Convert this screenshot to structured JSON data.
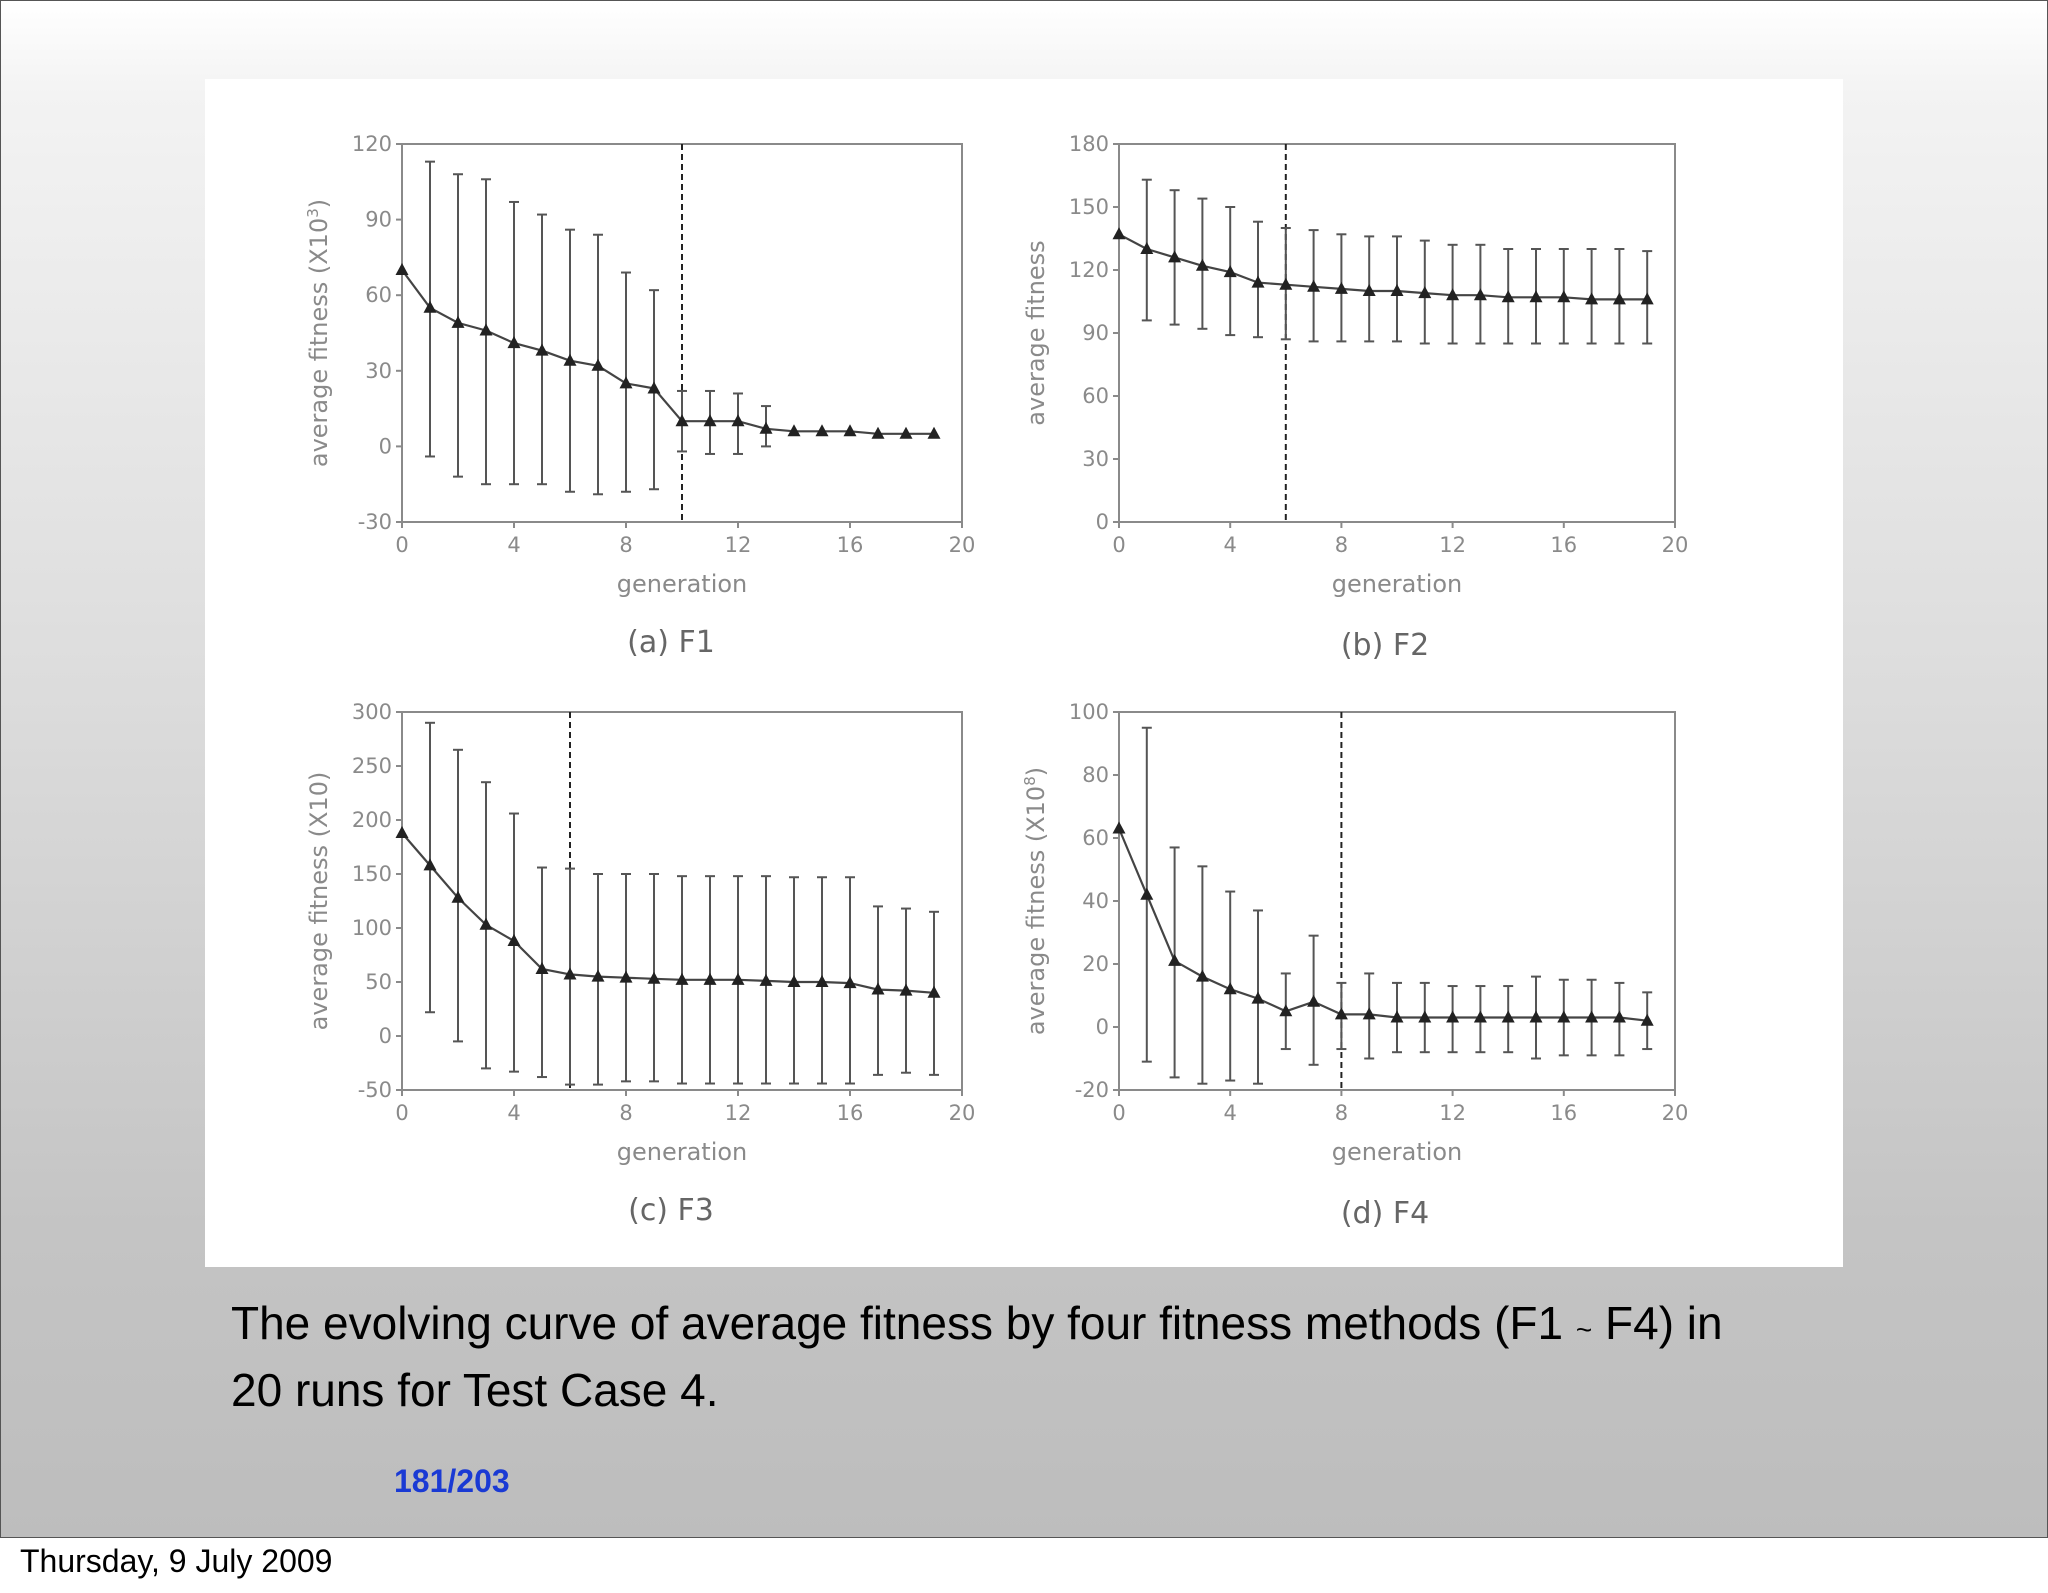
{
  "caption": {
    "text_part1": "The evolving curve of average fitness by four fitness methods (F1",
    "tilde": "~",
    "text_part2": " F4) in",
    "line2": "20 runs for Test Case 4."
  },
  "page_number": {
    "current": "181",
    "separator": "/",
    "total": "203"
  },
  "footer": {
    "date": "Thursday, 9 July 2009"
  },
  "colors": {
    "page_number": "#1a3ad4",
    "plot_ink": "#222222",
    "axis_gray": "#8a8a8a"
  },
  "chart_data": [
    {
      "type": "line",
      "panel_caption": "(a) F1",
      "xlabel": "generation",
      "ylabel": "average fitness (X10",
      "ylabel_sup": "3",
      "ylabel_end": ")",
      "xlim": [
        0,
        20
      ],
      "ylim": [
        -30,
        120
      ],
      "xticks": [
        "0",
        "4",
        "8",
        "12",
        "16",
        "20"
      ],
      "yticks": [
        "-30",
        "0",
        "30",
        "60",
        "90",
        "120"
      ],
      "ytick_values": [
        -30,
        0,
        30,
        60,
        90,
        120
      ],
      "xtick_values": [
        0,
        4,
        8,
        12,
        16,
        20
      ],
      "divider_x": 10,
      "x": [
        0,
        1,
        2,
        3,
        4,
        5,
        6,
        7,
        8,
        9,
        10,
        11,
        12,
        13,
        14,
        15,
        16,
        17,
        18,
        19
      ],
      "values": [
        70,
        55,
        49,
        46,
        41,
        38,
        34,
        32,
        25,
        23,
        10,
        10,
        10,
        7,
        6,
        6,
        6,
        5,
        5,
        5
      ],
      "err_low": [
        null,
        -4,
        -12,
        -15,
        -15,
        -15,
        -18,
        -19,
        -18,
        -17,
        -2,
        -3,
        -3,
        0,
        null,
        null,
        null,
        null,
        null,
        null
      ],
      "err_high": [
        null,
        113,
        108,
        106,
        97,
        92,
        86,
        84,
        69,
        62,
        22,
        22,
        21,
        16,
        null,
        null,
        null,
        null,
        null,
        null
      ]
    },
    {
      "type": "line",
      "panel_caption": "(b) F2",
      "xlabel": "generation",
      "ylabel": "average fitness",
      "ylabel_sup": "",
      "ylabel_end": "",
      "xlim": [
        0,
        20
      ],
      "ylim": [
        0,
        180
      ],
      "xticks": [
        "0",
        "4",
        "8",
        "12",
        "16",
        "20"
      ],
      "yticks": [
        "0",
        "30",
        "60",
        "90",
        "120",
        "150",
        "180"
      ],
      "ytick_values": [
        0,
        30,
        60,
        90,
        120,
        150,
        180
      ],
      "xtick_values": [
        0,
        4,
        8,
        12,
        16,
        20
      ],
      "divider_x": 6,
      "x": [
        0,
        1,
        2,
        3,
        4,
        5,
        6,
        7,
        8,
        9,
        10,
        11,
        12,
        13,
        14,
        15,
        16,
        17,
        18,
        19
      ],
      "values": [
        137,
        130,
        126,
        122,
        119,
        114,
        113,
        112,
        111,
        110,
        110,
        109,
        108,
        108,
        107,
        107,
        107,
        106,
        106,
        106
      ],
      "err_low": [
        null,
        96,
        94,
        92,
        89,
        88,
        87,
        86,
        86,
        86,
        86,
        85,
        85,
        85,
        85,
        85,
        85,
        85,
        85,
        85
      ],
      "err_high": [
        null,
        163,
        158,
        154,
        150,
        143,
        140,
        139,
        137,
        136,
        136,
        134,
        132,
        132,
        130,
        130,
        130,
        130,
        130,
        129
      ]
    },
    {
      "type": "line",
      "panel_caption": "(c) F3",
      "xlabel": "generation",
      "ylabel": "average fitness (X10)",
      "ylabel_sup": "",
      "ylabel_end": "",
      "xlim": [
        0,
        20
      ],
      "ylim": [
        -50,
        300
      ],
      "xticks": [
        "0",
        "4",
        "8",
        "12",
        "16",
        "20"
      ],
      "yticks": [
        "-50",
        "0",
        "50",
        "100",
        "150",
        "200",
        "250",
        "300"
      ],
      "ytick_values": [
        -50,
        0,
        50,
        100,
        150,
        200,
        250,
        300
      ],
      "xtick_values": [
        0,
        4,
        8,
        12,
        16,
        20
      ],
      "divider_x": 6,
      "x": [
        0,
        1,
        2,
        3,
        4,
        5,
        6,
        7,
        8,
        9,
        10,
        11,
        12,
        13,
        14,
        15,
        16,
        17,
        18,
        19
      ],
      "values": [
        188,
        158,
        128,
        103,
        88,
        62,
        57,
        55,
        54,
        53,
        52,
        52,
        52,
        51,
        50,
        50,
        49,
        43,
        42,
        40
      ],
      "err_low": [
        null,
        22,
        -5,
        -30,
        -33,
        -38,
        -45,
        -45,
        -42,
        -42,
        -44,
        -44,
        -44,
        -44,
        -44,
        -44,
        -44,
        -36,
        -34,
        -36
      ],
      "err_high": [
        null,
        290,
        265,
        235,
        206,
        156,
        155,
        150,
        150,
        150,
        148,
        148,
        148,
        148,
        147,
        147,
        147,
        120,
        118,
        115
      ]
    },
    {
      "type": "line",
      "panel_caption": "(d) F4",
      "xlabel": "generation",
      "ylabel": "average fitness (X10",
      "ylabel_sup": "8",
      "ylabel_end": ")",
      "xlim": [
        0,
        20
      ],
      "ylim": [
        -20,
        100
      ],
      "xticks": [
        "0",
        "4",
        "8",
        "12",
        "16",
        "20"
      ],
      "yticks": [
        "-20",
        "0",
        "20",
        "40",
        "60",
        "80",
        "100"
      ],
      "ytick_values": [
        -20,
        0,
        20,
        40,
        60,
        80,
        100
      ],
      "xtick_values": [
        0,
        4,
        8,
        12,
        16,
        20
      ],
      "divider_x": 8,
      "x": [
        0,
        1,
        2,
        3,
        4,
        5,
        6,
        7,
        8,
        9,
        10,
        11,
        12,
        13,
        14,
        15,
        16,
        17,
        18,
        19
      ],
      "values": [
        63,
        42,
        21,
        16,
        12,
        9,
        5,
        8,
        4,
        4,
        3,
        3,
        3,
        3,
        3,
        3,
        3,
        3,
        3,
        2
      ],
      "err_low": [
        null,
        -11,
        -16,
        -18,
        -17,
        -18,
        -7,
        -12,
        -7,
        -10,
        -8,
        -8,
        -8,
        -8,
        -8,
        -10,
        -9,
        -9,
        -9,
        -7
      ],
      "err_high": [
        null,
        95,
        57,
        51,
        43,
        37,
        17,
        29,
        14,
        17,
        14,
        14,
        13,
        13,
        13,
        16,
        15,
        15,
        14,
        11
      ]
    }
  ]
}
